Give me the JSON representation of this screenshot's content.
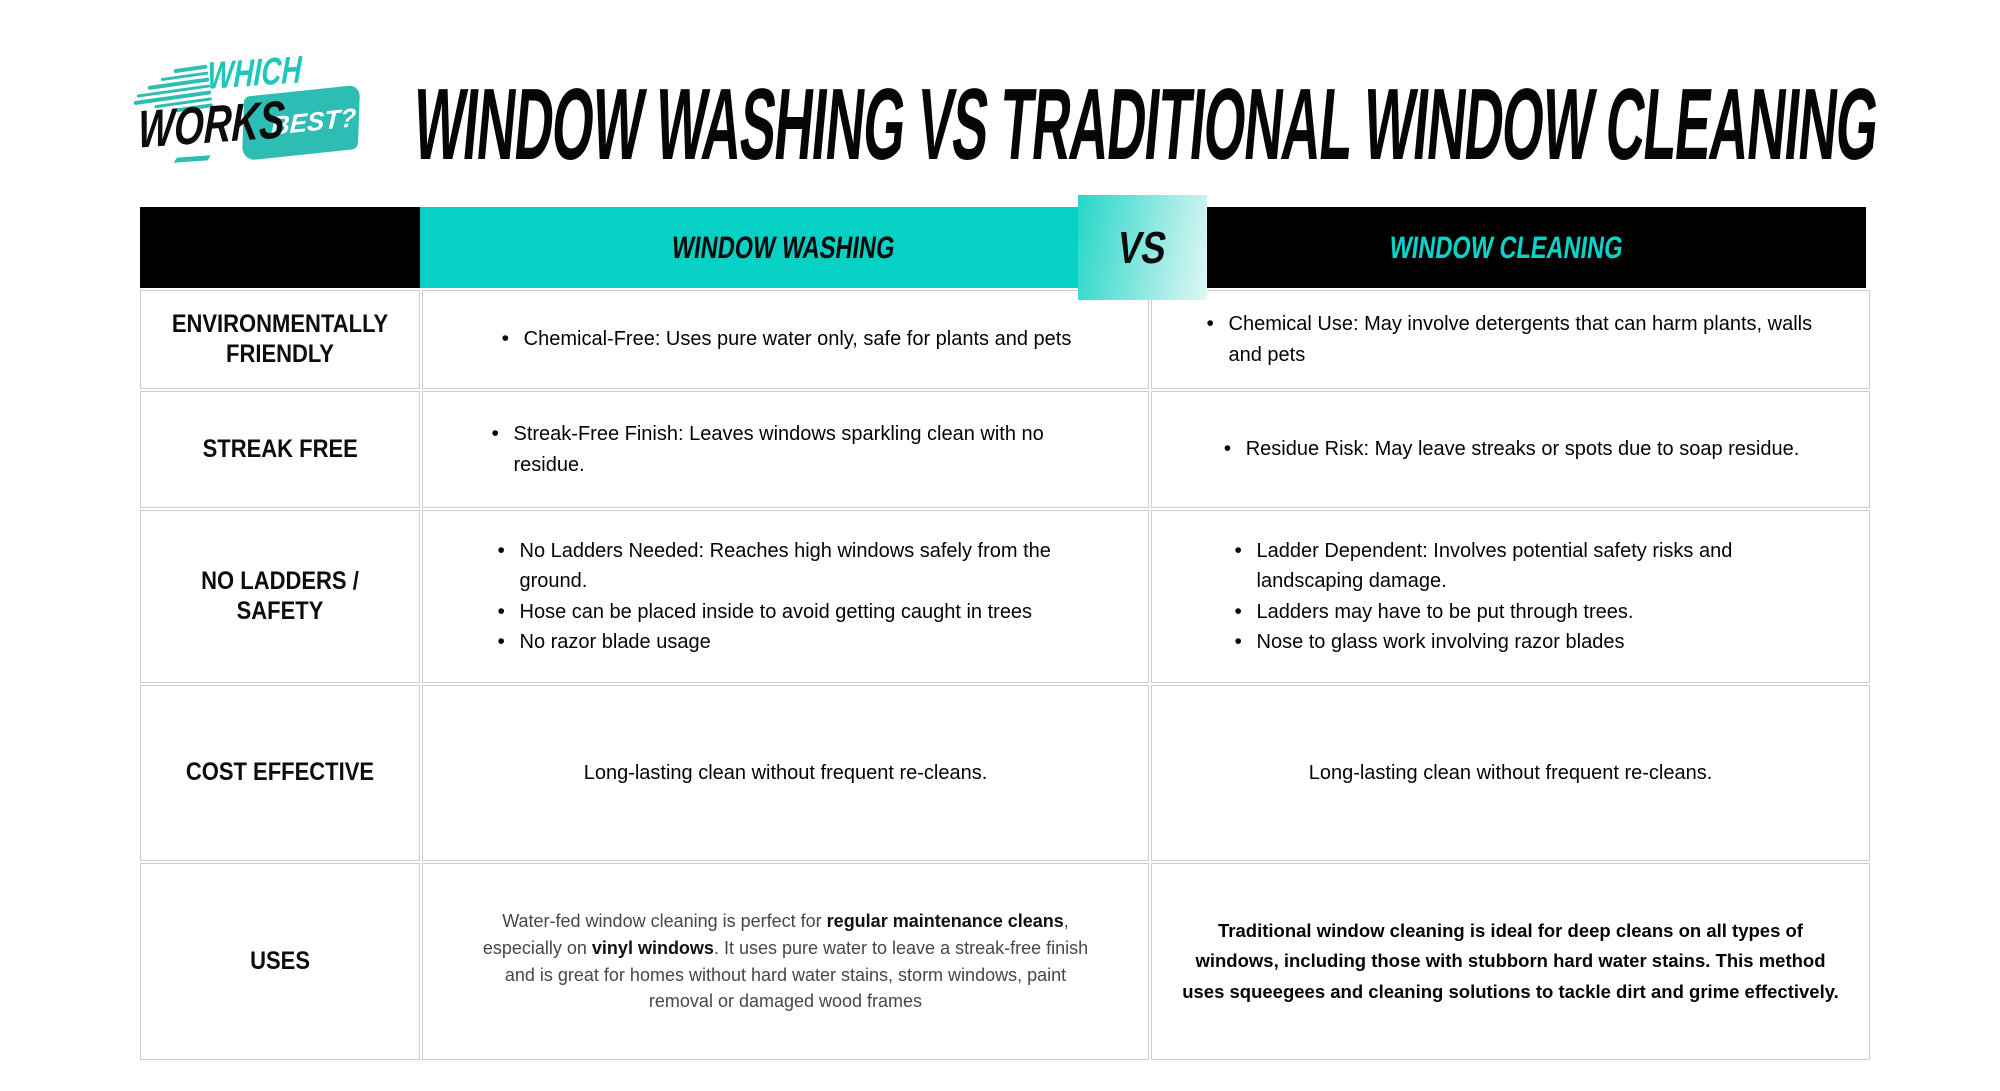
{
  "logo": {
    "which": "WHICH",
    "works": "WORKS",
    "best": "BEST?"
  },
  "title": "WINDOW WASHING VS TRADITIONAL WINDOW CLEANING",
  "colors": {
    "table_teal": "#07d0c5",
    "logo_teal": "#2ebdb5",
    "header_black": "#000000",
    "border_gray": "#c9cdcd",
    "vs_gradient_start": "#25d6c9",
    "vs_gradient_end": "#e0f8f5",
    "cleaning_header_text": "#0cd3c8"
  },
  "header": {
    "washing": "WINDOW WASHING",
    "vs": "VS",
    "cleaning": "WINDOW CLEANING"
  },
  "rows": [
    {
      "label": "ENVIRONMENTALLY FRIENDLY",
      "washing_bullets": [
        "Chemical-Free: Uses pure water only, safe for plants and pets"
      ],
      "cleaning_bullets": [
        "Chemical Use:  May involve detergents that can harm plants, walls and pets"
      ]
    },
    {
      "label": "STREAK FREE",
      "washing_bullets": [
        "Streak-Free Finish: Leaves windows sparkling clean with no residue."
      ],
      "cleaning_bullets": [
        "Residue Risk: May leave streaks or spots due to soap residue."
      ]
    },
    {
      "label": "NO LADDERS / SAFETY",
      "washing_bullets": [
        "No Ladders Needed: Reaches high windows safely from the ground.",
        "Hose can be placed inside to avoid getting caught in trees",
        "No razor blade usage"
      ],
      "cleaning_bullets": [
        "Ladder Dependent: Involves potential safety risks and landscaping damage.",
        "Ladders may have to be put through trees.",
        "Nose to glass work involving razor blades"
      ]
    },
    {
      "label": "COST EFFECTIVE",
      "washing_text": "Long-lasting clean without frequent re-cleans.",
      "cleaning_text": "Long-lasting clean without frequent re-cleans."
    },
    {
      "label": "USES",
      "washing_segments": [
        {
          "text": "Water-fed window cleaning is perfect for ",
          "bold": false
        },
        {
          "text": "regular maintenance cleans",
          "bold": true
        },
        {
          "text": ", especially on ",
          "bold": false
        },
        {
          "text": "vinyl windows",
          "bold": true
        },
        {
          "text": ". It uses pure water to leave a streak-free finish and is great for homes without hard water stains, storm windows, paint removal or damaged wood frames",
          "bold": false
        }
      ],
      "cleaning_text": "Traditional window cleaning is ideal for deep cleans on all types of windows, including those with stubborn hard water stains. This method uses squeegees and cleaning solutions to tackle dirt and grime effectively."
    }
  ]
}
